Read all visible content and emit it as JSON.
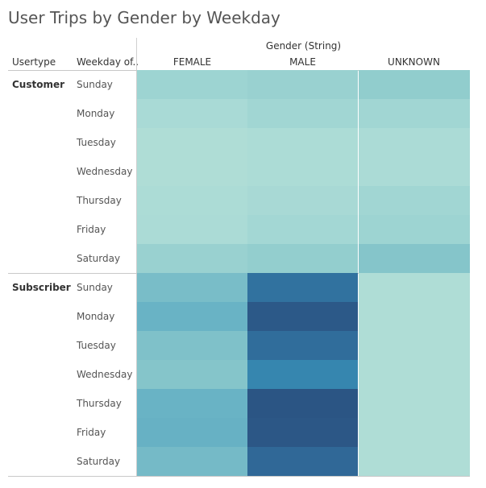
{
  "chart_data": {
    "type": "heatmap",
    "title": "User Trips by Gender by Weekday",
    "column_group_label": "Gender (String)",
    "row_headers": [
      "Usertype",
      "Weekday of.."
    ],
    "columns": [
      "FEMALE",
      "MALE",
      "UNKNOWN"
    ],
    "groups": [
      {
        "usertype": "Customer",
        "rows": [
          {
            "weekday": "Sunday",
            "values": [
              0.2,
              0.22,
              0.26
            ]
          },
          {
            "weekday": "Monday",
            "values": [
              0.14,
              0.18,
              0.18
            ]
          },
          {
            "weekday": "Tuesday",
            "values": [
              0.1,
              0.12,
              0.13
            ]
          },
          {
            "weekday": "Wednesday",
            "values": [
              0.1,
              0.12,
              0.13
            ]
          },
          {
            "weekday": "Thursday",
            "values": [
              0.12,
              0.15,
              0.18
            ]
          },
          {
            "weekday": "Friday",
            "values": [
              0.13,
              0.17,
              0.2
            ]
          },
          {
            "weekday": "Saturday",
            "values": [
              0.22,
              0.25,
              0.32
            ]
          }
        ]
      },
      {
        "usertype": "Subscriber",
        "rows": [
          {
            "weekday": "Sunday",
            "values": [
              0.38,
              0.78,
              0.1
            ]
          },
          {
            "weekday": "Monday",
            "values": [
              0.45,
              0.95,
              0.1
            ]
          },
          {
            "weekday": "Tuesday",
            "values": [
              0.35,
              0.8,
              0.1
            ]
          },
          {
            "weekday": "Wednesday",
            "values": [
              0.32,
              0.7,
              0.1
            ]
          },
          {
            "weekday": "Thursday",
            "values": [
              0.45,
              1.0,
              0.1
            ]
          },
          {
            "weekday": "Friday",
            "values": [
              0.46,
              0.97,
              0.1
            ]
          },
          {
            "weekday": "Saturday",
            "values": [
              0.4,
              0.82,
              0.1
            ]
          }
        ]
      }
    ],
    "color_scale": [
      "#bde4d6",
      "#a9dad6",
      "#8ccacb",
      "#6fb6c6",
      "#4aa1bd",
      "#3483ad",
      "#2e5f8f",
      "#2b5584"
    ]
  }
}
